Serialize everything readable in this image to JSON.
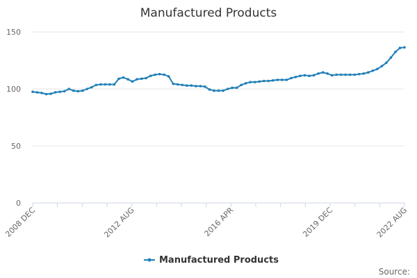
{
  "chart_data": {
    "type": "line",
    "title": "Manufactured Products",
    "xlabel": "",
    "ylabel": "",
    "ylim": [
      0,
      150
    ],
    "yticks": [
      0,
      50,
      100,
      150
    ],
    "xtick_labels": [
      "2008 DEC",
      "2012 AUG",
      "2016 APR",
      "2019 DEC",
      "2022 AUG"
    ],
    "grid": true,
    "legend_position": "bottom-center",
    "credits": "Source:",
    "color": "#1f7fb8",
    "series": [
      {
        "name": "Manufactured Products",
        "x": [
          "2008-12",
          "2009-02",
          "2009-04",
          "2009-06",
          "2009-08",
          "2009-10",
          "2009-12",
          "2010-02",
          "2010-04",
          "2010-06",
          "2010-08",
          "2010-10",
          "2010-12",
          "2011-02",
          "2011-04",
          "2011-06",
          "2011-08",
          "2011-10",
          "2011-12",
          "2012-02",
          "2012-04",
          "2012-06",
          "2012-08",
          "2012-10",
          "2012-12",
          "2013-02",
          "2013-04",
          "2013-06",
          "2013-08",
          "2013-10",
          "2013-12",
          "2014-02",
          "2014-04",
          "2014-06",
          "2014-08",
          "2014-10",
          "2014-12",
          "2015-02",
          "2015-04",
          "2015-06",
          "2015-08",
          "2015-10",
          "2015-12",
          "2016-02",
          "2016-04",
          "2016-06",
          "2016-08",
          "2016-10",
          "2016-12",
          "2017-02",
          "2017-04",
          "2017-06",
          "2017-08",
          "2017-10",
          "2017-12",
          "2018-02",
          "2018-04",
          "2018-06",
          "2018-08",
          "2018-10",
          "2018-12",
          "2019-02",
          "2019-04",
          "2019-06",
          "2019-08",
          "2019-10",
          "2019-12",
          "2020-02",
          "2020-04",
          "2020-06",
          "2020-08",
          "2020-10",
          "2020-12",
          "2021-02",
          "2021-04",
          "2021-06",
          "2021-08",
          "2021-10",
          "2021-12",
          "2022-02",
          "2022-04",
          "2022-06",
          "2022-08"
        ],
        "values": [
          97.5,
          97,
          96.5,
          95.5,
          95.8,
          97,
          97.5,
          98,
          100,
          98.5,
          98,
          98.5,
          100,
          101.5,
          103.5,
          104,
          104,
          104,
          104,
          109,
          110,
          108.5,
          106.5,
          108.5,
          109,
          109.5,
          111.5,
          112.5,
          113,
          112.5,
          111,
          104.5,
          104,
          103.5,
          103,
          103,
          102.5,
          102.5,
          102,
          99.5,
          98.5,
          98.5,
          98.5,
          100,
          101,
          101,
          103.5,
          105,
          106,
          106,
          106.5,
          107,
          107,
          107.5,
          108,
          108,
          108,
          109.5,
          110.5,
          111.5,
          112,
          111.5,
          112,
          113.5,
          114.5,
          113.5,
          112,
          112.5,
          112.5,
          112.5,
          112.5,
          112.5,
          113,
          113.5,
          114.5,
          116,
          117.5,
          120,
          123,
          127.5,
          132.5,
          136,
          136.5
        ]
      }
    ]
  }
}
